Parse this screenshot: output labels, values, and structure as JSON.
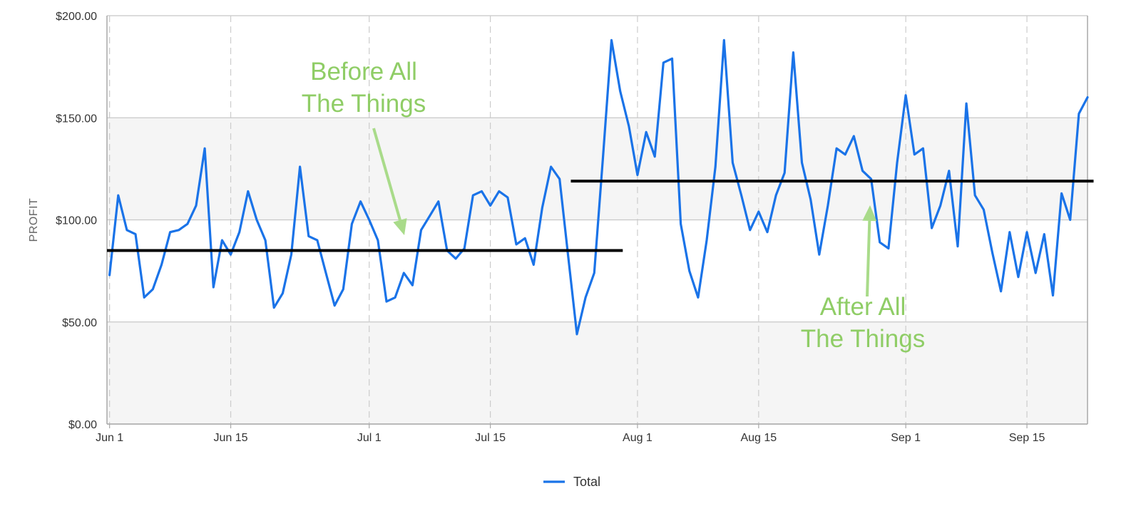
{
  "chart_data": {
    "type": "line",
    "title": "",
    "xlabel": "",
    "ylabel": "PROFIT",
    "x_ticks": [
      "Jun 1",
      "Jun 15",
      "Jul 1",
      "Jul 15",
      "Aug 1",
      "Aug 15",
      "Sep 1",
      "Sep 15"
    ],
    "y_ticks": [
      "$0.00",
      "$50.00",
      "$100.00",
      "$150.00",
      "$200.00"
    ],
    "ylim": [
      0,
      200
    ],
    "x_range_days": [
      -0.3,
      113
    ],
    "x_tick_days": [
      0,
      14,
      30,
      44,
      61,
      75,
      92,
      106
    ],
    "grid": {
      "horizontal": true,
      "vertical_dashed": true,
      "alternating_bands": true
    },
    "legend": {
      "position": "bottom-center",
      "entries": [
        {
          "label": "Total",
          "color": "#1a73e8"
        }
      ]
    },
    "series": [
      {
        "name": "Total",
        "color": "#1a73e8",
        "points": [
          [
            0,
            73
          ],
          [
            1,
            112
          ],
          [
            2,
            95
          ],
          [
            3,
            93
          ],
          [
            4,
            62
          ],
          [
            5,
            66
          ],
          [
            6,
            78
          ],
          [
            7,
            94
          ],
          [
            8,
            95
          ],
          [
            9,
            98
          ],
          [
            10,
            107
          ],
          [
            11,
            135
          ],
          [
            12,
            67
          ],
          [
            13,
            90
          ],
          [
            14,
            83
          ],
          [
            15,
            94
          ],
          [
            16,
            114
          ],
          [
            17,
            100
          ],
          [
            18,
            90
          ],
          [
            19,
            57
          ],
          [
            20,
            64
          ],
          [
            21,
            83
          ],
          [
            22,
            126
          ],
          [
            23,
            92
          ],
          [
            24,
            90
          ],
          [
            25,
            74
          ],
          [
            26,
            58
          ],
          [
            27,
            66
          ],
          [
            28,
            98
          ],
          [
            29,
            109
          ],
          [
            30,
            100
          ],
          [
            31,
            90
          ],
          [
            32,
            60
          ],
          [
            33,
            62
          ],
          [
            34,
            74
          ],
          [
            35,
            68
          ],
          [
            36,
            95
          ],
          [
            37,
            102
          ],
          [
            38,
            109
          ],
          [
            39,
            85
          ],
          [
            40,
            81
          ],
          [
            41,
            86
          ],
          [
            42,
            112
          ],
          [
            43,
            114
          ],
          [
            44,
            107
          ],
          [
            45,
            114
          ],
          [
            46,
            111
          ],
          [
            47,
            88
          ],
          [
            48,
            91
          ],
          [
            49,
            78
          ],
          [
            50,
            106
          ],
          [
            51,
            126
          ],
          [
            52,
            120
          ],
          [
            53,
            82
          ],
          [
            54,
            44
          ],
          [
            55,
            62
          ],
          [
            56,
            74
          ],
          [
            57,
            130
          ],
          [
            58,
            188
          ],
          [
            59,
            163
          ],
          [
            60,
            146
          ],
          [
            61,
            122
          ],
          [
            62,
            143
          ],
          [
            63,
            131
          ],
          [
            64,
            177
          ],
          [
            65,
            179
          ],
          [
            66,
            98
          ],
          [
            67,
            75
          ],
          [
            68,
            62
          ],
          [
            69,
            90
          ],
          [
            70,
            126
          ],
          [
            71,
            188
          ],
          [
            72,
            128
          ],
          [
            73,
            112
          ],
          [
            74,
            95
          ],
          [
            75,
            104
          ],
          [
            76,
            94
          ],
          [
            77,
            112
          ],
          [
            78,
            123
          ],
          [
            79,
            182
          ],
          [
            80,
            128
          ],
          [
            81,
            110
          ],
          [
            82,
            83
          ],
          [
            83,
            107
          ],
          [
            84,
            135
          ],
          [
            85,
            132
          ],
          [
            86,
            141
          ],
          [
            87,
            124
          ],
          [
            88,
            120
          ],
          [
            89,
            89
          ],
          [
            90,
            86
          ],
          [
            91,
            128
          ],
          [
            92,
            161
          ],
          [
            93,
            132
          ],
          [
            94,
            135
          ],
          [
            95,
            96
          ],
          [
            96,
            107
          ],
          [
            97,
            124
          ],
          [
            98,
            87
          ],
          [
            99,
            157
          ],
          [
            100,
            112
          ],
          [
            101,
            105
          ],
          [
            102,
            84
          ],
          [
            103,
            65
          ],
          [
            104,
            94
          ],
          [
            105,
            72
          ],
          [
            106,
            94
          ],
          [
            107,
            74
          ],
          [
            108,
            93
          ],
          [
            109,
            63
          ],
          [
            110,
            113
          ],
          [
            111,
            100
          ],
          [
            112,
            152
          ],
          [
            113,
            160
          ]
        ]
      }
    ],
    "reference_lines": [
      {
        "name": "before-average",
        "y": 85,
        "x_from": -0.3,
        "x_to": 59.3
      },
      {
        "name": "after-average",
        "y": 119,
        "x_from": 53.3,
        "x_to": 113.7
      }
    ],
    "annotations": [
      {
        "name": "before",
        "lines": [
          "Before All",
          "The Things"
        ]
      },
      {
        "name": "after",
        "lines": [
          "After All",
          "The Things"
        ]
      }
    ]
  }
}
